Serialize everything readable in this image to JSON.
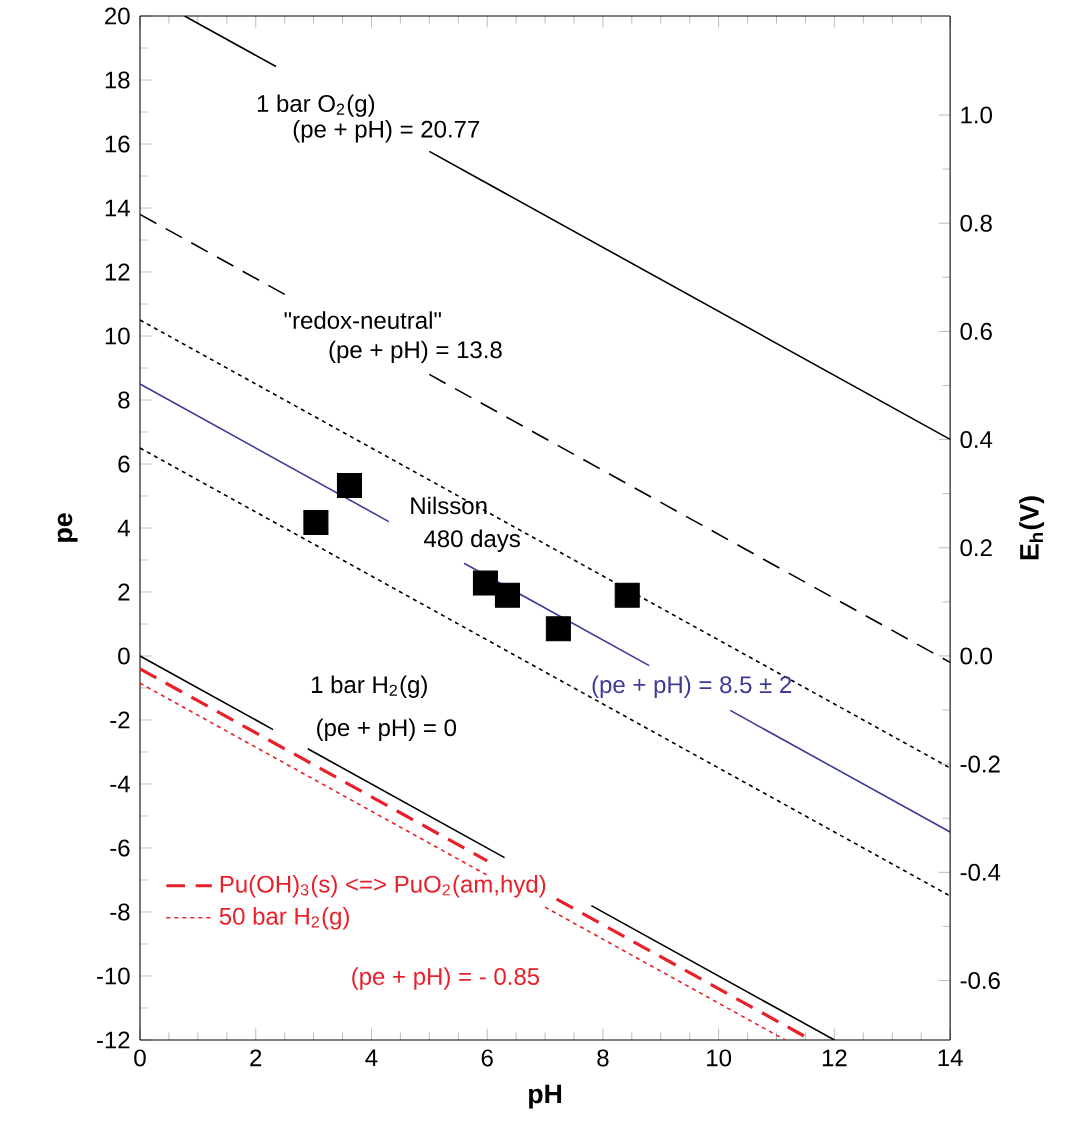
{
  "chart_data": {
    "type": "line",
    "xlabel": "pH",
    "ylabel": "pe",
    "y2label": "E$_{h}$(V)",
    "xlim": [
      0,
      14
    ],
    "xticks": [
      0,
      2,
      4,
      6,
      8,
      10,
      12,
      14
    ],
    "ylim": [
      -12,
      20
    ],
    "yticks": [
      -12,
      -10,
      -8,
      -6,
      -4,
      -2,
      0,
      2,
      4,
      6,
      8,
      10,
      12,
      14,
      16,
      18,
      20
    ],
    "y2lim": [
      -0.71,
      1.183
    ],
    "y2ticks": [
      -0.6,
      -0.4,
      -0.2,
      {
        "value": 0,
        "label": "0.0"
      },
      0.2,
      0.4,
      0.6,
      0.8,
      {
        "value": 1,
        "label": "1.0"
      }
    ],
    "grid": false,
    "legend": "bottom left",
    "series": [
      {
        "color": "#000000",
        "line_style": "solid",
        "x": [
          0.77,
          2.35,
          3.5,
          5.0,
          14
        ],
        "values": [
          20,
          18.42,
          null,
          15.77,
          6.77
        ]
      },
      {
        "color": "#000000",
        "line_style": "dashed",
        "x": [
          0,
          2.6,
          3.5,
          5.0,
          14
        ],
        "values": [
          13.8,
          11.2,
          null,
          8.8,
          -0.2
        ]
      },
      {
        "color": "#000000",
        "line_style": "dotted",
        "x": [
          0,
          14
        ],
        "values": [
          10.5,
          -3.5
        ]
      },
      {
        "color": "#000000",
        "line_style": "dotted",
        "x": [
          0,
          14
        ],
        "values": [
          6.5,
          -7.5
        ]
      },
      {
        "color": "#3c3c96",
        "line_style": "solid",
        "x": [
          0,
          4.3,
          5.0,
          5.6,
          8.8,
          9.5,
          10.2,
          14
        ],
        "values": [
          8.5,
          4.2,
          null,
          2.9,
          -0.3,
          null,
          -1.7,
          -5.5
        ]
      },
      {
        "color": "#000000",
        "line_style": "solid",
        "x": [
          0,
          2.3,
          2.6,
          2.9,
          6.3,
          7.0,
          7.8,
          12
        ],
        "values": [
          0,
          -2.3,
          null,
          -2.9,
          -6.3,
          null,
          -7.8,
          -12
        ]
      },
      {
        "name": "Pu(OH)$_{3}$(s) <=> PuO$_{2}$(am,hyd)",
        "color": "#e8202a",
        "line_style": "dashed",
        "x": [
          0,
          6.0,
          6.6,
          7.2,
          11.6
        ],
        "values": [
          -0.4,
          -6.4,
          null,
          -7.6,
          -12
        ]
      },
      {
        "name": "50 bar H$_{2}$(g)",
        "color": "#e8202a",
        "line_style": "dotted",
        "x": [
          0,
          6.0,
          6.5,
          7.0,
          11.15
        ],
        "values": [
          -0.85,
          -6.85,
          null,
          -7.85,
          -12
        ]
      },
      {
        "type": "scatter",
        "color": "#000000",
        "marker": "square",
        "x": [
          3.04,
          3.62,
          5.97,
          6.35,
          7.23,
          8.42
        ],
        "values": [
          4.17,
          5.33,
          2.28,
          1.9,
          0.85,
          1.9
        ]
      }
    ],
    "annotations": [
      "1 bar O$_{2}$(g)",
      "(pe + pH) = 20.77",
      "\"redox-neutral\"",
      "(pe + pH) = 13.8",
      "Nilsson",
      "480 days",
      "(pe + pH) = 8.5 ± 2",
      "1 bar H$_{2}$(g)",
      "(pe + pH) = 0",
      "(pe + pH) = - 0.85"
    ]
  }
}
